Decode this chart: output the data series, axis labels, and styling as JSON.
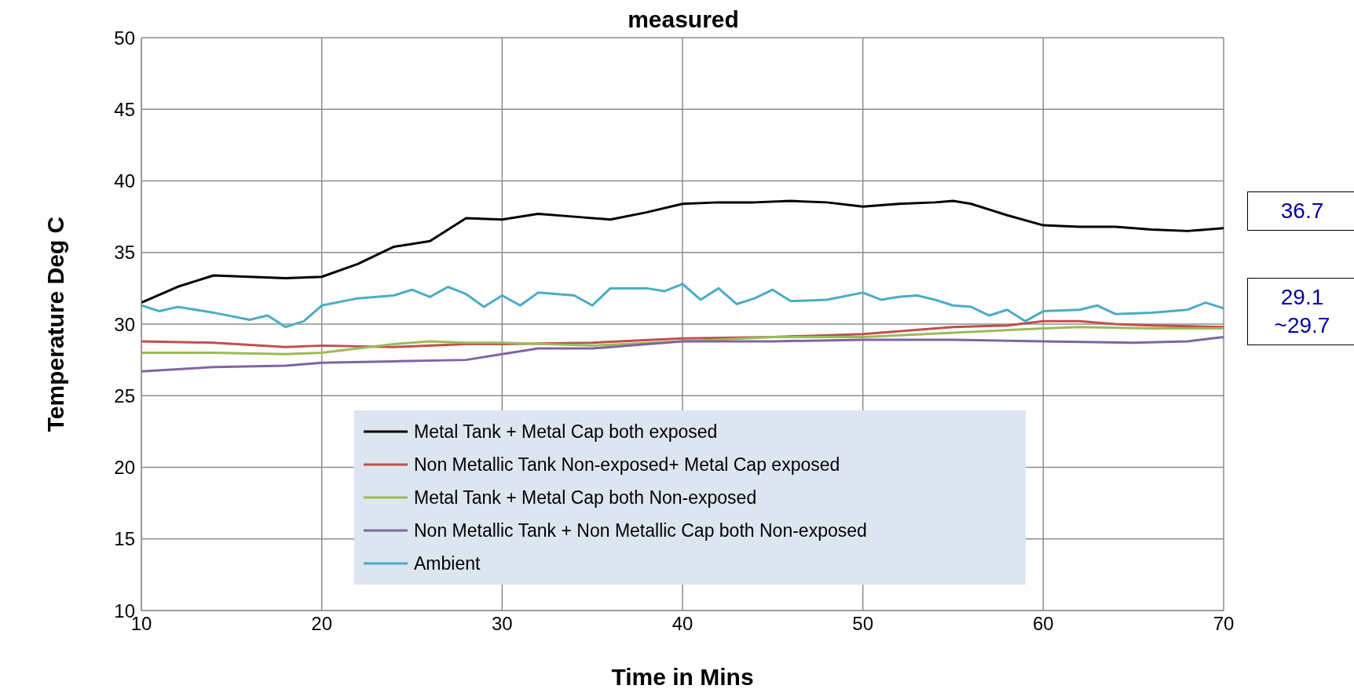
{
  "chart_data": {
    "type": "line",
    "title": "measured",
    "xlabel": "Time in Mins",
    "ylabel": "Temperature Deg C",
    "xlim": [
      10,
      70
    ],
    "xticks": [
      10,
      20,
      30,
      40,
      50,
      60,
      70
    ],
    "ylim": [
      10,
      50
    ],
    "yticks": [
      10,
      15,
      20,
      25,
      30,
      35,
      40,
      45,
      50
    ],
    "grid": true,
    "legend": "bottom",
    "marker": "none",
    "line_style": "solid",
    "series": [
      {
        "name": "Metal Tank + Metal Cap both exposed",
        "color": "#000000",
        "x": [
          10,
          12,
          14,
          16,
          18,
          20,
          22,
          24,
          26,
          28,
          30,
          32,
          34,
          36,
          38,
          40,
          42,
          44,
          46,
          48,
          50,
          52,
          54,
          55,
          56,
          58,
          60,
          62,
          64,
          66,
          68,
          70
        ],
        "values": [
          31.5,
          32.6,
          33.4,
          33.3,
          33.2,
          33.3,
          34.2,
          35.4,
          35.8,
          37.4,
          37.3,
          37.7,
          37.5,
          37.3,
          37.8,
          38.4,
          38.5,
          38.5,
          38.6,
          38.5,
          38.2,
          38.4,
          38.5,
          38.6,
          38.4,
          37.6,
          36.9,
          36.8,
          36.8,
          36.6,
          36.5,
          36.7
        ]
      },
      {
        "name": "Non Metallic Tank Non-exposed+ Metal Cap exposed",
        "color": "#c0504d",
        "x": [
          10,
          14,
          18,
          20,
          24,
          28,
          30,
          35,
          40,
          45,
          50,
          55,
          58,
          60,
          62,
          64,
          66,
          70
        ],
        "values": [
          28.8,
          28.7,
          28.4,
          28.5,
          28.4,
          28.6,
          28.6,
          28.7,
          29,
          29.1,
          29.3,
          29.8,
          29.9,
          30.2,
          30.2,
          30,
          29.9,
          29.8
        ]
      },
      {
        "name": "Metal Tank + Metal Cap both Non-exposed",
        "color": "#9bbb59",
        "x": [
          10,
          14,
          18,
          20,
          24,
          26,
          28,
          30,
          35,
          40,
          45,
          50,
          55,
          60,
          62,
          66,
          70
        ],
        "values": [
          28,
          28,
          27.9,
          28,
          28.6,
          28.8,
          28.7,
          28.7,
          28.5,
          28.8,
          29.1,
          29.1,
          29.4,
          29.7,
          29.8,
          29.7,
          29.7
        ]
      },
      {
        "name": "Non Metallic Tank + Non Metallic Cap both Non-exposed",
        "color": "#8064a2",
        "x": [
          10,
          14,
          18,
          20,
          24,
          28,
          30,
          32,
          35,
          40,
          45,
          50,
          55,
          60,
          65,
          68,
          70
        ],
        "values": [
          26.7,
          27,
          27.1,
          27.3,
          27.4,
          27.5,
          27.9,
          28.3,
          28.3,
          28.8,
          28.8,
          28.9,
          28.9,
          28.8,
          28.7,
          28.8,
          29.1
        ]
      },
      {
        "name": "Ambient",
        "color": "#4bacc6",
        "x": [
          10,
          11,
          12,
          14,
          16,
          17,
          18,
          19,
          20,
          22,
          24,
          25,
          26,
          27,
          28,
          29,
          30,
          31,
          32,
          34,
          35,
          36,
          38,
          39,
          40,
          41,
          42,
          43,
          44,
          45,
          46,
          48,
          50,
          51,
          52,
          53,
          54,
          55,
          56,
          57,
          58,
          59,
          60,
          62,
          63,
          64,
          66,
          68,
          69,
          70
        ],
        "values": [
          31.3,
          30.9,
          31.2,
          30.8,
          30.3,
          30.6,
          29.8,
          30.2,
          31.3,
          31.8,
          32,
          32.4,
          31.9,
          32.6,
          32.1,
          31.2,
          32,
          31.3,
          32.2,
          32,
          31.3,
          32.5,
          32.5,
          32.3,
          32.8,
          31.7,
          32.5,
          31.4,
          31.8,
          32.4,
          31.6,
          31.7,
          32.2,
          31.7,
          31.9,
          32,
          31.7,
          31.3,
          31.2,
          30.6,
          31,
          30.2,
          30.9,
          31,
          31.3,
          30.7,
          30.8,
          31,
          31.5,
          31.1
        ]
      }
    ],
    "annotations": [
      "36.7",
      "29.1\n~29.7"
    ]
  }
}
